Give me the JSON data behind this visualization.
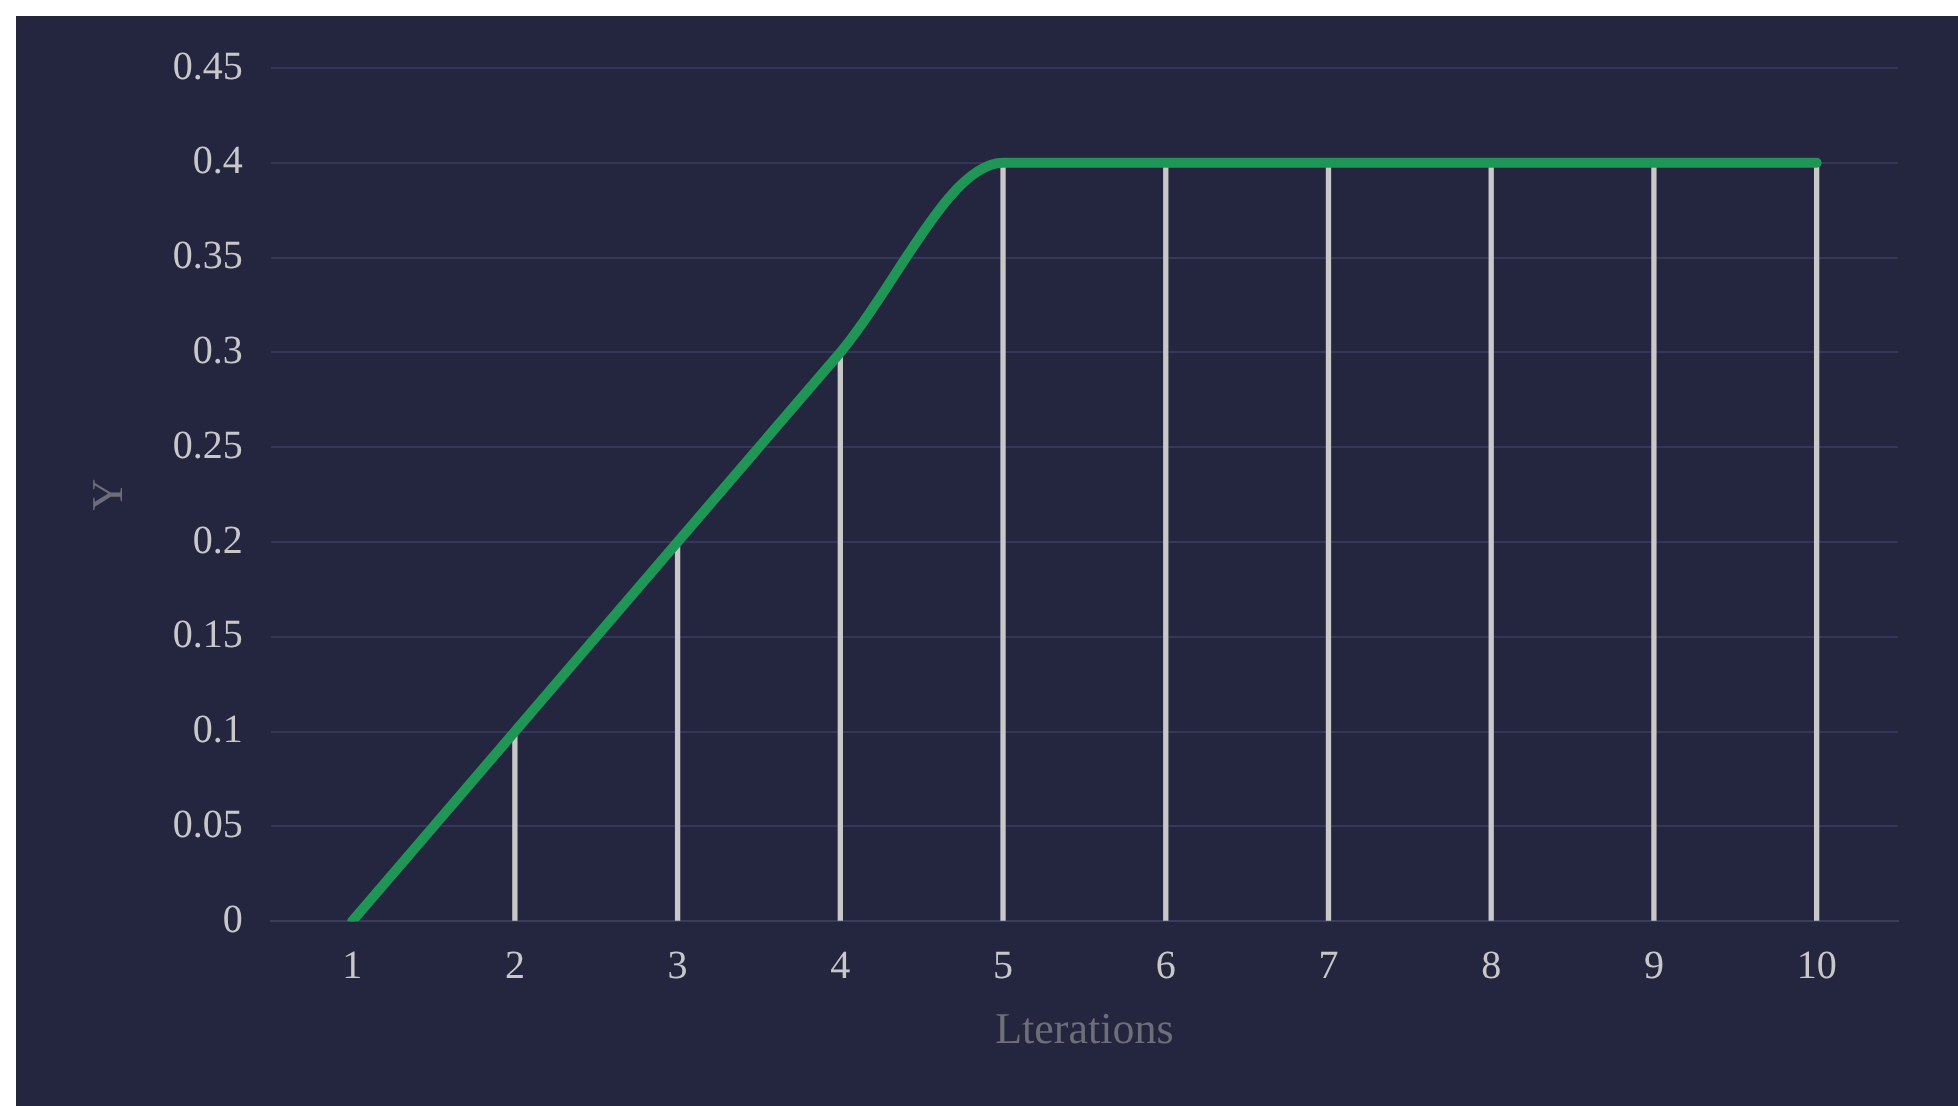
{
  "chart_data": {
    "type": "line",
    "xlabel": "Lterations",
    "ylabel": "Y",
    "categories": [
      "1",
      "2",
      "3",
      "4",
      "5",
      "6",
      "7",
      "8",
      "9",
      "10"
    ],
    "series": [
      {
        "type": "bar",
        "color": "#c8c8c8",
        "values": [
          0,
          0.1,
          0.2,
          0.3,
          0.4,
          0.4,
          0.4,
          0.4,
          0.4,
          0.4
        ]
      },
      {
        "color": "#1f9656",
        "values": [
          0,
          0.1,
          0.2,
          0.3,
          0.4,
          0.4,
          0.4,
          0.4,
          0.4,
          0.4
        ]
      }
    ],
    "ylim": [
      0,
      0.45
    ],
    "yticks": [
      0,
      0.05,
      0.1,
      0.15,
      0.2,
      0.25,
      0.3,
      0.35,
      0.4,
      0.45
    ],
    "grid": "y",
    "legend": false,
    "marker": "none",
    "line_style": "solid"
  }
}
